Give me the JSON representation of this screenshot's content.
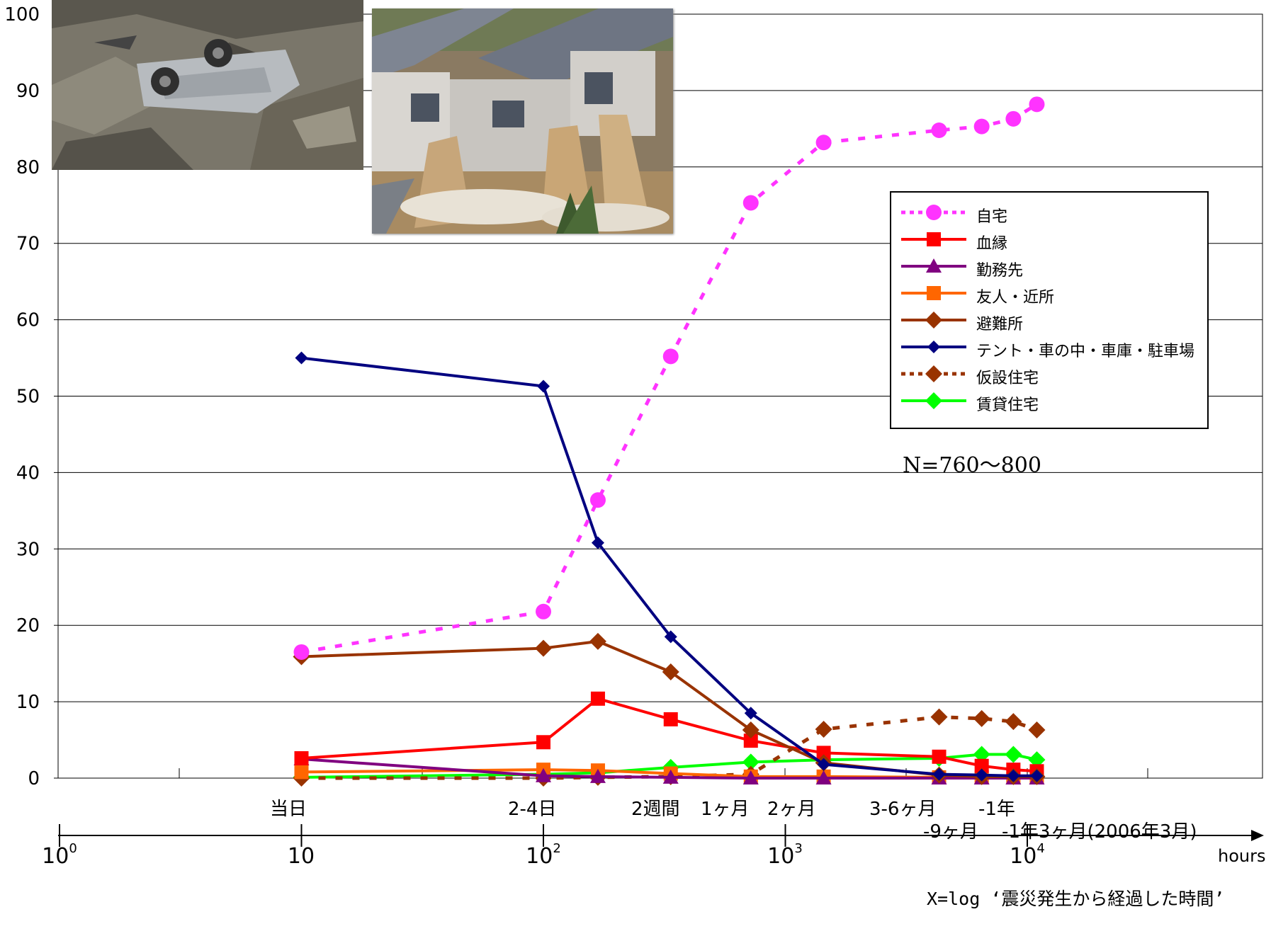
{
  "chart_data": {
    "type": "line",
    "x_scale": "log",
    "ylim": [
      0,
      100
    ],
    "y_ticks": [
      "0",
      "10",
      "20",
      "30",
      "40",
      "50",
      "60",
      "70",
      "80",
      "90",
      "100"
    ],
    "x_hours_ticks": [
      {
        "base": "10",
        "exp": "0"
      },
      {
        "base": "10",
        "exp": ""
      },
      {
        "base": "10",
        "exp": "2"
      },
      {
        "base": "10",
        "exp": "3"
      },
      {
        "base": "10",
        "exp": "4"
      }
    ],
    "x_unit_label": "hours",
    "x_axis_note": "X=log ‘震災発生から経過した時間’",
    "period_labels": [
      "当日",
      "2-4日",
      "2週間",
      "1ヶ月",
      "2ヶ月",
      "3-6ヶ月",
      "-1年",
      "-9ヶ月",
      "-1年3ヶ月(2006年3月)"
    ],
    "annotation": "N=760〜800",
    "grid": true,
    "legend_position": "top-right",
    "series": [
      {
        "name": "自宅",
        "color": "#ff33ff",
        "marker": "circle",
        "dash": true,
        "points": [
          [
            10,
            16.5
          ],
          [
            100,
            21.8
          ],
          [
            168,
            36.4
          ],
          [
            336,
            55.2
          ],
          [
            720,
            75.3
          ],
          [
            1440,
            83.2
          ],
          [
            4320,
            84.8
          ],
          [
            6480,
            85.3
          ],
          [
            8760,
            86.3
          ],
          [
            10950,
            88.2
          ]
        ]
      },
      {
        "name": "血縁",
        "color": "#ff0000",
        "marker": "square",
        "dash": false,
        "points": [
          [
            10,
            2.6
          ],
          [
            100,
            4.7
          ],
          [
            168,
            10.4
          ],
          [
            336,
            7.7
          ],
          [
            720,
            4.9
          ],
          [
            1440,
            3.3
          ],
          [
            4320,
            2.8
          ],
          [
            6480,
            1.6
          ],
          [
            8760,
            1.1
          ],
          [
            10950,
            0.9
          ]
        ]
      },
      {
        "name": "勤務先",
        "color": "#800080",
        "marker": "triangle",
        "dash": false,
        "points": [
          [
            10,
            2.5
          ],
          [
            100,
            0.3
          ],
          [
            168,
            0.2
          ],
          [
            336,
            0.1
          ],
          [
            720,
            0
          ],
          [
            1440,
            0
          ],
          [
            4320,
            0
          ],
          [
            6480,
            0
          ],
          [
            8760,
            0
          ],
          [
            10950,
            0
          ]
        ]
      },
      {
        "name": "友人・近所",
        "color": "#ff6600",
        "marker": "square",
        "dash": false,
        "points": [
          [
            10,
            0.8
          ],
          [
            100,
            1.1
          ],
          [
            168,
            1.0
          ],
          [
            336,
            0.6
          ],
          [
            720,
            0.2
          ],
          [
            1440,
            0.2
          ],
          [
            4320,
            0.1
          ],
          [
            6480,
            0.1
          ],
          [
            8760,
            0.1
          ],
          [
            10950,
            0.1
          ]
        ]
      },
      {
        "name": "避難所",
        "color": "#993300",
        "marker": "diamond",
        "dash": false,
        "points": [
          [
            10,
            15.9
          ],
          [
            100,
            17.0
          ],
          [
            168,
            17.9
          ],
          [
            336,
            13.9
          ],
          [
            720,
            6.3
          ],
          [
            1440,
            2.0
          ],
          [
            4320,
            0.4
          ],
          [
            6480,
            0.2
          ],
          [
            8760,
            0.2
          ],
          [
            10950,
            0.2
          ]
        ]
      },
      {
        "name": "テント・車の中・車庫・駐車場",
        "color": "#000080",
        "marker": "diamond-small",
        "dash": false,
        "points": [
          [
            10,
            55.0
          ],
          [
            100,
            51.3
          ],
          [
            168,
            30.8
          ],
          [
            336,
            18.5
          ],
          [
            720,
            8.5
          ],
          [
            1440,
            1.8
          ],
          [
            4320,
            0.5
          ],
          [
            6480,
            0.4
          ],
          [
            8760,
            0.3
          ],
          [
            10950,
            0.3
          ]
        ]
      },
      {
        "name": "仮設住宅",
        "color": "#993300",
        "marker": "diamond",
        "dash": true,
        "points": [
          [
            10,
            0
          ],
          [
            100,
            0
          ],
          [
            168,
            0.1
          ],
          [
            336,
            0.2
          ],
          [
            720,
            0.5
          ],
          [
            1440,
            6.4
          ],
          [
            4320,
            8.0
          ],
          [
            6480,
            7.8
          ],
          [
            8760,
            7.4
          ],
          [
            10950,
            6.3
          ]
        ]
      },
      {
        "name": "賃貸住宅",
        "color": "#00ff00",
        "marker": "diamond",
        "dash": false,
        "points": [
          [
            10,
            0.1
          ],
          [
            100,
            0.5
          ],
          [
            168,
            0.7
          ],
          [
            336,
            1.4
          ],
          [
            720,
            2.1
          ],
          [
            1440,
            2.4
          ],
          [
            4320,
            2.6
          ],
          [
            6480,
            3.1
          ],
          [
            8760,
            3.1
          ],
          [
            10950,
            2.4
          ]
        ]
      }
    ]
  }
}
